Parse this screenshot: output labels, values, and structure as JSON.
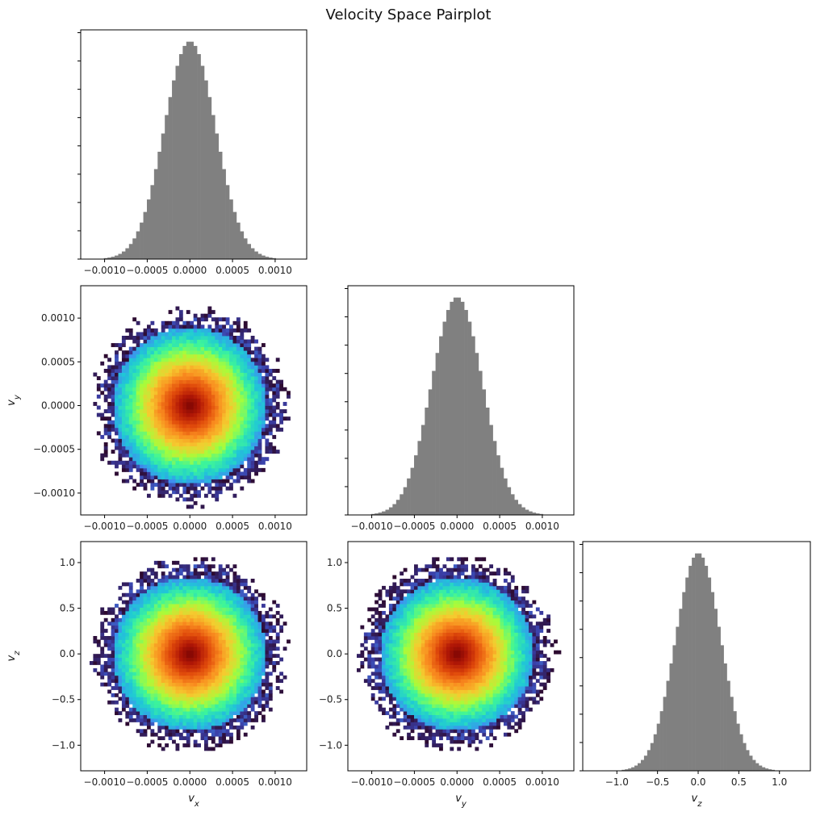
{
  "title": "Velocity Space Pairplot",
  "colors": {
    "histogram_bar": "#808080",
    "frame": "#000000",
    "colormap": [
      "#2d0a2f",
      "#3b3fa8",
      "#3f8ff0",
      "#1fc8d6",
      "#3df59a",
      "#a8fc3a",
      "#f5cb2f",
      "#f98b1f",
      "#e04a0b",
      "#b21806",
      "#7a0403"
    ]
  },
  "chart_data": [
    {
      "id": "hist-vx",
      "type": "bar",
      "panel": "diagonal-1",
      "x_range": [
        -0.00128,
        0.00137
      ],
      "x_ticks": [
        -0.001,
        -0.0005,
        0.0,
        0.0005,
        0.001
      ],
      "x_tick_labels": [
        "−0.0010",
        "−0.0005",
        "0.0000",
        "0.0005",
        "0.0010"
      ],
      "y_tick_labels_shown": false,
      "distribution": {
        "mean": 0.0,
        "std": 0.0003,
        "bins": 60
      }
    },
    {
      "id": "hist2d-vx-vy",
      "type": "heatmap",
      "panel": "row2-col1",
      "x_range": [
        -0.00128,
        0.00137
      ],
      "y_range": [
        -0.00125,
        0.00137
      ],
      "x_ticks": [
        -0.001,
        -0.0005,
        0.0,
        0.0005,
        0.001
      ],
      "x_tick_labels": [
        "−0.0010",
        "−0.0005",
        "0.0000",
        "0.0005",
        "0.0010"
      ],
      "y_ticks": [
        -0.001,
        -0.0005,
        0.0,
        0.0005,
        0.001
      ],
      "y_tick_labels": [
        "−0.0010",
        "−0.0005",
        "0.0000",
        "0.0005",
        "0.0010"
      ],
      "ylabel": "v_y",
      "distribution": {
        "x_mean": 0.0,
        "x_std": 0.0003,
        "y_mean": 0.0,
        "y_std": 0.0003,
        "bins": 60
      }
    },
    {
      "id": "hist-vy",
      "type": "bar",
      "panel": "diagonal-2",
      "x_range": [
        -0.00128,
        0.00137
      ],
      "x_ticks": [
        -0.001,
        -0.0005,
        0.0,
        0.0005,
        0.001
      ],
      "x_tick_labels": [
        "−0.0010",
        "−0.0005",
        "0.0000",
        "0.0005",
        "0.0010"
      ],
      "y_tick_labels_shown": false,
      "distribution": {
        "mean": 0.0,
        "std": 0.0003,
        "bins": 60
      }
    },
    {
      "id": "hist2d-vx-vz",
      "type": "heatmap",
      "panel": "row3-col1",
      "x_range": [
        -0.00128,
        0.00137
      ],
      "y_range": [
        -1.28,
        1.23
      ],
      "x_ticks": [
        -0.001,
        -0.0005,
        0.0,
        0.0005,
        0.001
      ],
      "x_tick_labels": [
        "−0.0010",
        "−0.0005",
        "0.0000",
        "0.0005",
        "0.0010"
      ],
      "y_ticks": [
        -1.0,
        -0.5,
        0.0,
        0.5,
        1.0
      ],
      "y_tick_labels": [
        "−1.0",
        "−0.5",
        "0.0",
        "0.5",
        "1.0"
      ],
      "xlabel": "v_x",
      "ylabel": "v_z",
      "distribution": {
        "x_mean": 0.0,
        "x_std": 0.0003,
        "y_mean": 0.0,
        "y_std": 0.28,
        "bins": 60
      }
    },
    {
      "id": "hist2d-vy-vz",
      "type": "heatmap",
      "panel": "row3-col2",
      "x_range": [
        -0.00128,
        0.00137
      ],
      "y_range": [
        -1.28,
        1.23
      ],
      "x_ticks": [
        -0.001,
        -0.0005,
        0.0,
        0.0005,
        0.001
      ],
      "x_tick_labels": [
        "−0.0010",
        "−0.0005",
        "0.0000",
        "0.0005",
        "0.0010"
      ],
      "y_ticks": [
        -1.0,
        -0.5,
        0.0,
        0.5,
        1.0
      ],
      "y_tick_labels": [
        "−1.0",
        "−0.5",
        "0.0",
        "0.5",
        "1.0"
      ],
      "xlabel": "v_y",
      "distribution": {
        "x_mean": 0.0,
        "x_std": 0.0003,
        "y_mean": 0.0,
        "y_std": 0.28,
        "bins": 60
      }
    },
    {
      "id": "hist-vz",
      "type": "bar",
      "panel": "diagonal-3",
      "x_range": [
        -1.42,
        1.38
      ],
      "x_ticks": [
        -1.0,
        -0.5,
        0.0,
        0.5,
        1.0
      ],
      "x_tick_labels": [
        "−1.0",
        "−0.5",
        "0.0",
        "0.5",
        "1.0"
      ],
      "xlabel": "v_z",
      "y_tick_labels_shown": false,
      "distribution": {
        "mean": 0.0,
        "std": 0.28,
        "bins": 60
      }
    }
  ]
}
